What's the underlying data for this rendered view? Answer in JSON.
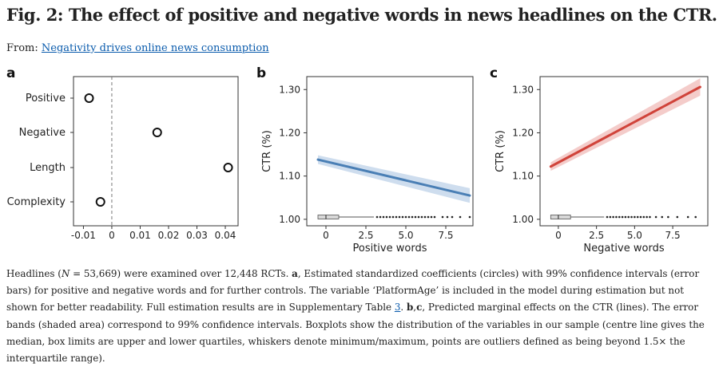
{
  "figure": {
    "title": "Fig. 2: The effect of positive and negative words in news headlines on the CTR.",
    "from_prefix": "From: ",
    "from_link": "Negativity drives online news consumption"
  },
  "panels": {
    "a": "a",
    "b": "b",
    "c": "c"
  },
  "caption": {
    "p1": "Headlines (",
    "n_var": "N",
    "p2": " = 53,669) were examined over 12,448 RCTs. ",
    "a_label": "a",
    "p3": ", Estimated standardized coefficients (circles) with 99% confidence intervals (error bars) for positive and negative words and for further controls. The variable ‘PlatformAge’ is included in the model during estimation but not shown for better readability. Full estimation results are in Supplementary Table ",
    "table_ref": "3",
    "p4": ". ",
    "bc_label": "b",
    "p5": ",",
    "c_label": "c",
    "p6": ", Predicted marginal effects on the CTR (lines). The error bands (shaded area) correspond to 99% confidence intervals. Boxplots show the distribution of the variables in our sample (centre line gives the median, box limits are upper and lower quartiles, whiskers denote minimum/maximum, points are outliers defined as being beyond 1.5× the interquartile range)."
  },
  "chart_data": [
    {
      "type": "scatter",
      "panel": "a",
      "categories": [
        "Positive",
        "Negative",
        "Length",
        "Complexity"
      ],
      "estimates": [
        -0.008,
        0.016,
        0.041,
        -0.004
      ],
      "ci_low": [
        -0.0095,
        0.0145,
        0.0395,
        -0.0055
      ],
      "ci_high": [
        -0.0065,
        0.0175,
        0.0425,
        -0.0025
      ],
      "xticks": [
        "-0.01",
        "0",
        "0.01",
        "0.02",
        "0.03",
        "0.04"
      ],
      "xtick_values": [
        -0.01,
        0,
        0.01,
        0.02,
        0.03,
        0.04
      ],
      "xlim": [
        -0.0135,
        0.0445
      ],
      "reference_line": 0,
      "grid": false
    },
    {
      "type": "line",
      "panel": "b",
      "xlabel": "Positive words",
      "ylabel": "CTR (%)",
      "xlim": [
        -1.2,
        9.2
      ],
      "ylim": [
        0.985,
        1.33
      ],
      "xticks": [
        "0",
        "2.5",
        "5.0",
        "7.5"
      ],
      "xtick_values": [
        0,
        2.5,
        5,
        7.5
      ],
      "yticks": [
        "1.00",
        "1.10",
        "1.20",
        "1.30"
      ],
      "ytick_values": [
        1.0,
        1.1,
        1.2,
        1.3
      ],
      "color": "#4a7fb5",
      "band_color": "#c9d9ec",
      "series": [
        {
          "x": [
            -0.5,
            9.0
          ],
          "y": [
            1.138,
            1.055
          ],
          "lower": [
            1.128,
            1.038
          ],
          "upper": [
            1.148,
            1.072
          ]
        }
      ],
      "boxplot": {
        "whisker_low": -0.5,
        "q1": -0.5,
        "median": 0,
        "q3": 0.8,
        "whisker_high": 3.0,
        "outliers": [
          3.2,
          3.4,
          3.6,
          3.8,
          4.0,
          4.2,
          4.4,
          4.6,
          4.8,
          5.0,
          5.2,
          5.4,
          5.6,
          5.8,
          6.0,
          6.2,
          6.4,
          6.6,
          6.8,
          7.3,
          7.6,
          7.9,
          8.4,
          9.0
        ]
      },
      "grid": false
    },
    {
      "type": "line",
      "panel": "c",
      "xlabel": "Negative words",
      "ylabel": "CTR (%)",
      "xlim": [
        -1.2,
        9.8
      ],
      "ylim": [
        0.985,
        1.33
      ],
      "xticks": [
        "0",
        "2.5",
        "5.0",
        "7.5"
      ],
      "xtick_values": [
        0,
        2.5,
        5,
        7.5
      ],
      "yticks": [
        "1.00",
        "1.10",
        "1.20",
        "1.30"
      ],
      "ytick_values": [
        1.0,
        1.1,
        1.2,
        1.3
      ],
      "color": "#d0433a",
      "band_color": "#f3c7c4",
      "series": [
        {
          "x": [
            -0.5,
            9.3
          ],
          "y": [
            1.122,
            1.306
          ],
          "lower": [
            1.112,
            1.286
          ],
          "upper": [
            1.132,
            1.326
          ]
        }
      ],
      "boxplot": {
        "whisker_low": -0.5,
        "q1": -0.5,
        "median": 0,
        "q3": 0.8,
        "whisker_high": 3.0,
        "outliers": [
          3.2,
          3.4,
          3.6,
          3.8,
          4.0,
          4.2,
          4.4,
          4.6,
          4.8,
          5.0,
          5.2,
          5.4,
          5.6,
          5.8,
          6.0,
          6.4,
          6.8,
          7.2,
          7.8,
          8.5,
          9.0
        ]
      },
      "grid": false
    }
  ]
}
